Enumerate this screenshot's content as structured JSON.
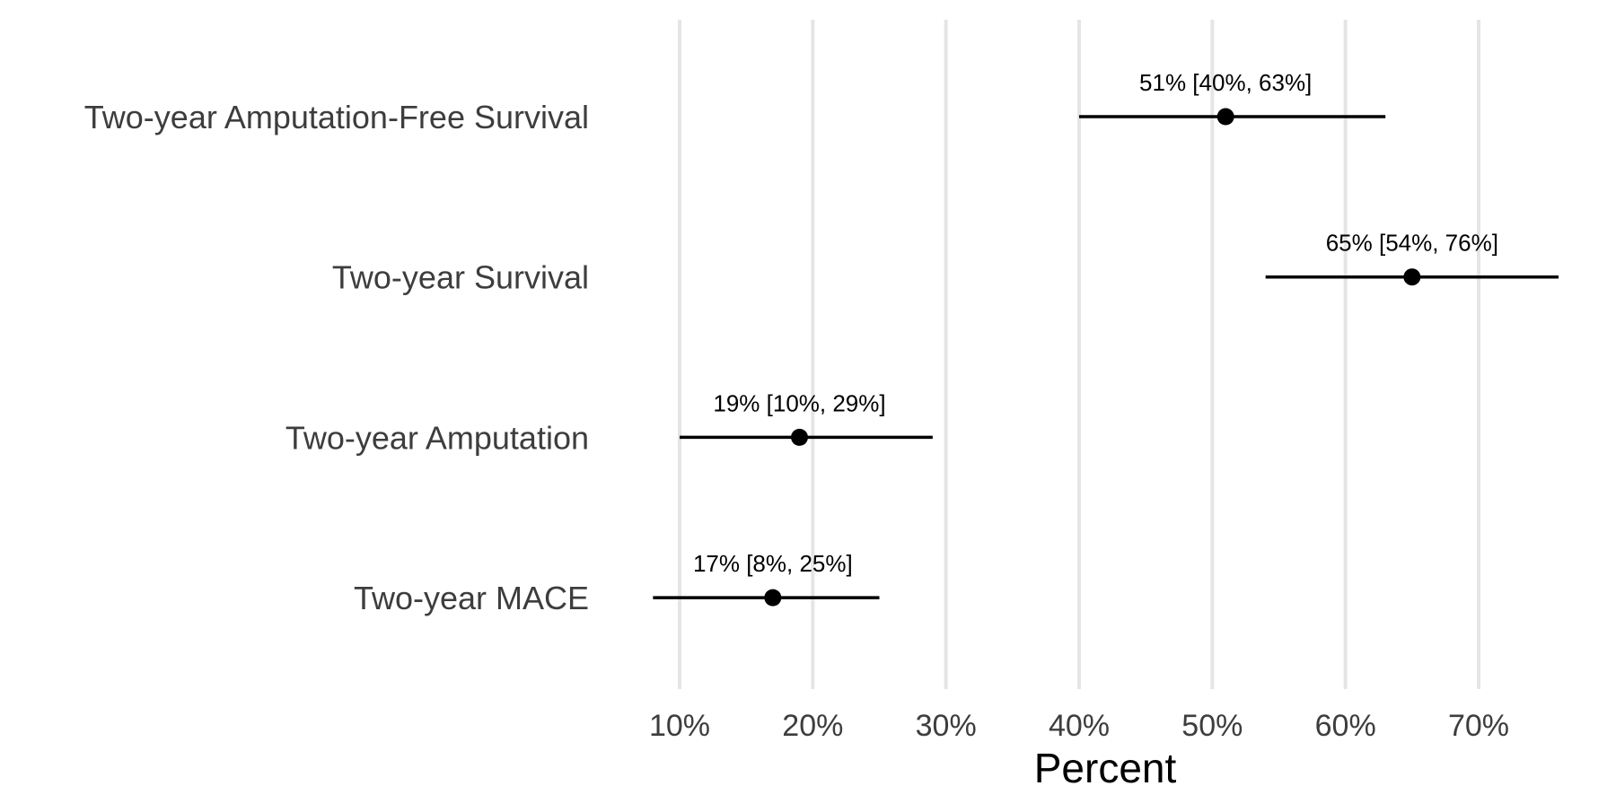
{
  "chart_data": {
    "type": "scatter",
    "subtype": "forest-plot",
    "title": "",
    "xlabel": "Percent",
    "ylabel": "",
    "xlim": [
      8,
      76
    ],
    "x_ticks": [
      10,
      20,
      30,
      40,
      50,
      60,
      70
    ],
    "x_tick_labels": [
      "10%",
      "20%",
      "30%",
      "40%",
      "50%",
      "60%",
      "70%"
    ],
    "grid": "vertical major gridlines only",
    "legend": "none",
    "rows": [
      {
        "label": "Two-year Amputation-Free Survival",
        "estimate": 51,
        "lower": 40,
        "upper": 63,
        "annotation": "51% [40%, 63%]"
      },
      {
        "label": "Two-year Survival",
        "estimate": 65,
        "lower": 54,
        "upper": 76,
        "annotation": "65% [54%, 76%]"
      },
      {
        "label": "Two-year Amputation",
        "estimate": 19,
        "lower": 10,
        "upper": 29,
        "annotation": "19% [10%, 29%]"
      },
      {
        "label": "Two-year MACE",
        "estimate": 17,
        "lower": 8,
        "upper": 25,
        "annotation": "17% [8%, 25%]"
      }
    ],
    "colors": {
      "marks": "#000000",
      "grid": "#e5e5e5",
      "axis_text": "#3d3d3d",
      "background": "#ffffff"
    }
  }
}
